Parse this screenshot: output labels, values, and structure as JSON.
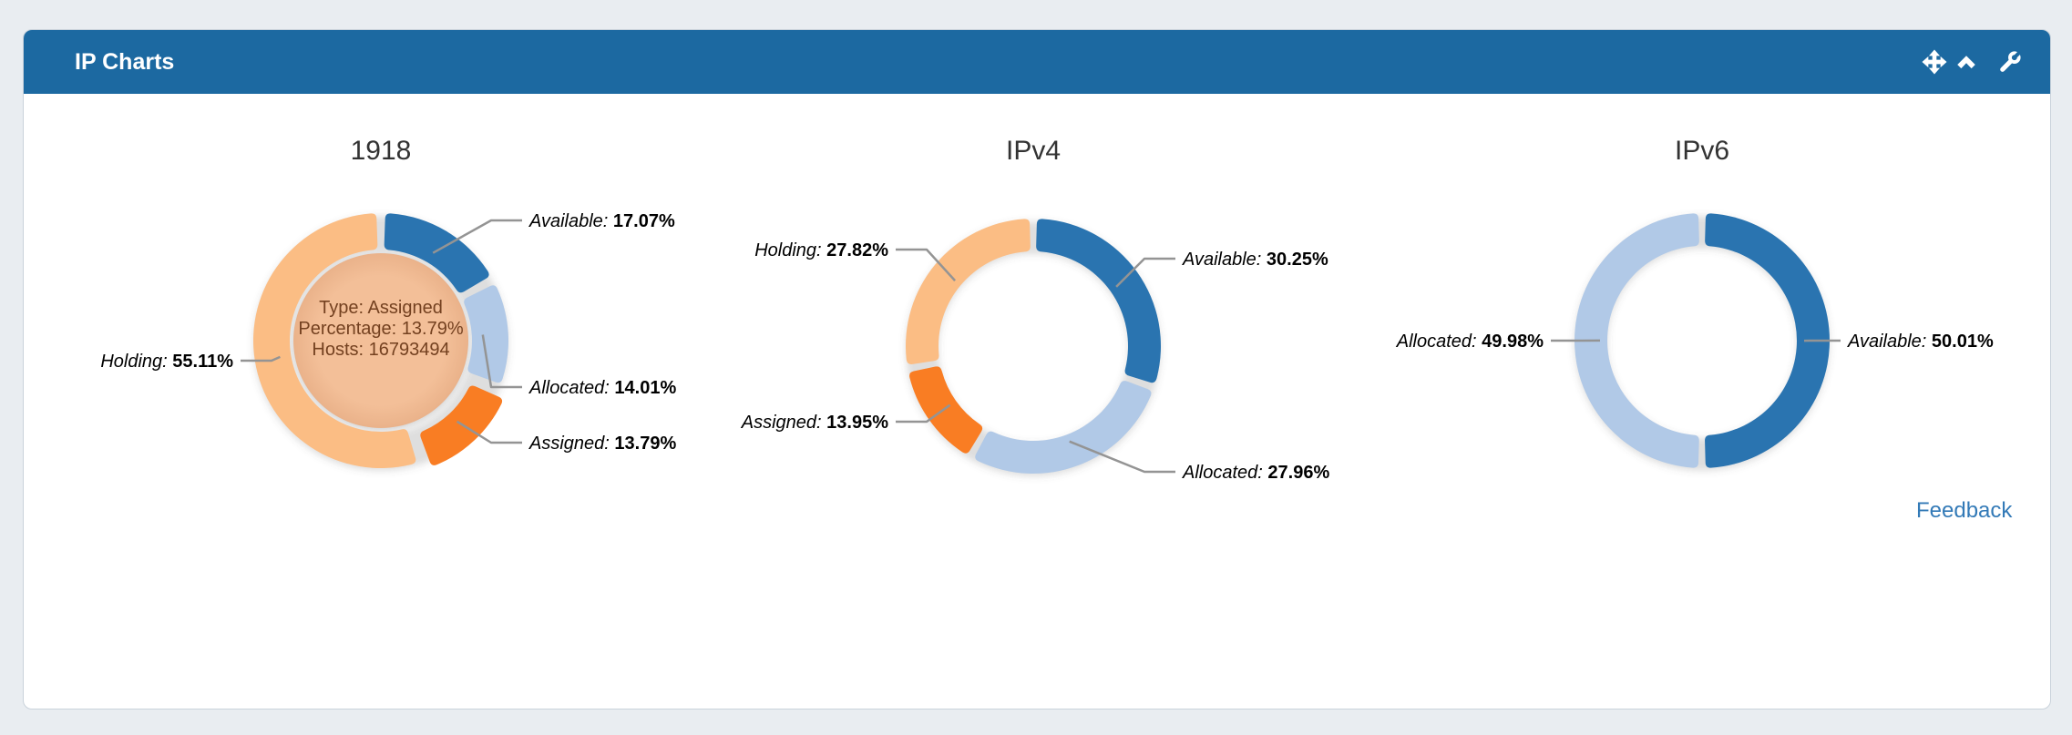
{
  "panel": {
    "title": "IP Charts",
    "feedback_label": "Feedback",
    "header_icons": [
      "move-icon",
      "collapse-icon",
      "wrench-icon"
    ]
  },
  "colors": {
    "header_bg": "#1c69a1",
    "available": "#2a74b0",
    "allocated": "#b1c9e7",
    "assigned": "#f97d23",
    "holding": "#fbbd84",
    "link": "#337ab7",
    "connector": "#949494",
    "tooltip_bg": "#f3bf98",
    "tooltip_text": "#744120",
    "label_text": "#000000",
    "title_text": "#333333"
  },
  "chart_data": [
    {
      "type": "donut",
      "title": "1918",
      "segments": [
        {
          "label": "Available",
          "value": 17.07,
          "display": "17.07%",
          "color_key": "available"
        },
        {
          "label": "Allocated",
          "value": 14.01,
          "display": "14.01%",
          "color_key": "allocated"
        },
        {
          "label": "Assigned",
          "value": 13.79,
          "display": "13.79%",
          "color_key": "assigned",
          "state": "hovered"
        },
        {
          "label": "Holding",
          "value": 55.11,
          "display": "55.11%",
          "color_key": "holding"
        }
      ],
      "center_tooltip": {
        "lines": [
          "Type: Assigned",
          "Percentage: 13.79%",
          "Hosts: 16793494"
        ]
      }
    },
    {
      "type": "donut",
      "title": "IPv4",
      "segments": [
        {
          "label": "Available",
          "value": 30.25,
          "display": "30.25%",
          "color_key": "available"
        },
        {
          "label": "Allocated",
          "value": 27.96,
          "display": "27.96%",
          "color_key": "allocated"
        },
        {
          "label": "Assigned",
          "value": 13.95,
          "display": "13.95%",
          "color_key": "assigned"
        },
        {
          "label": "Holding",
          "value": 27.82,
          "display": "27.82%",
          "color_key": "holding"
        }
      ]
    },
    {
      "type": "donut",
      "title": "IPv6",
      "segments": [
        {
          "label": "Available",
          "value": 50.01,
          "display": "50.01%",
          "color_key": "available"
        },
        {
          "label": "Allocated",
          "value": 49.98,
          "display": "49.98%",
          "color_key": "allocated"
        }
      ]
    }
  ]
}
